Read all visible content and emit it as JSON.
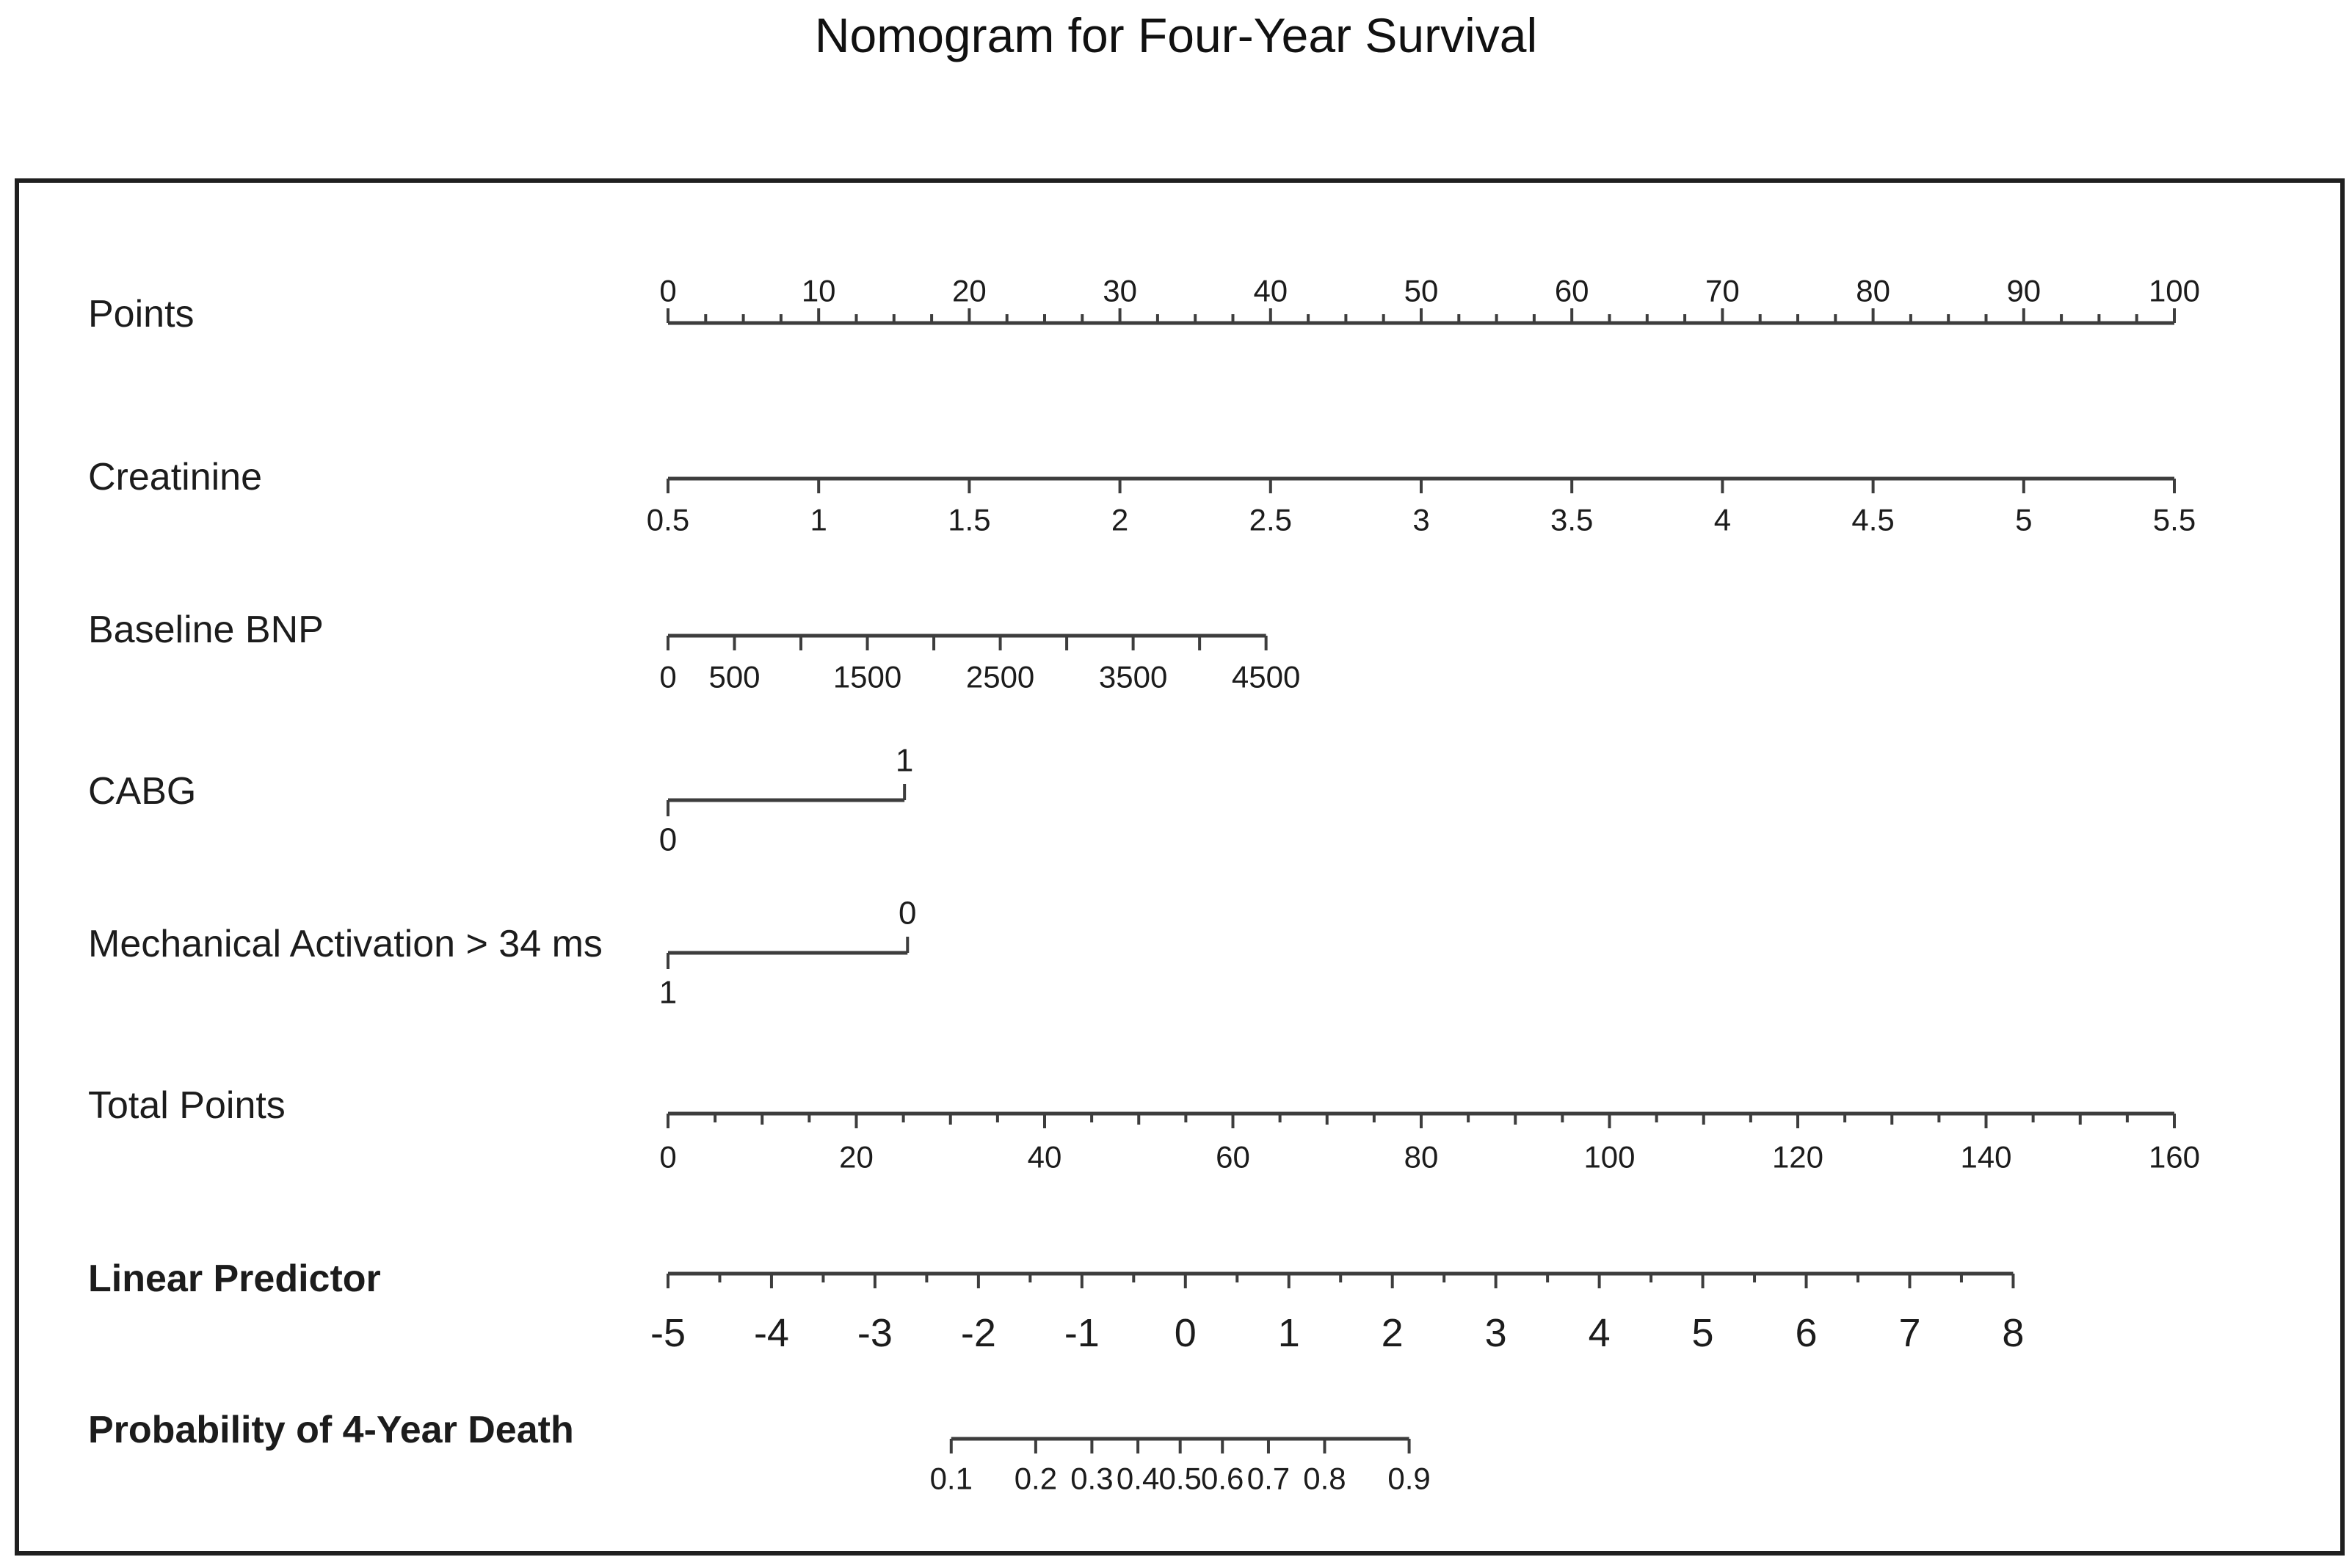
{
  "title": "Nomogram for Four-Year Survival",
  "colors": {
    "background": "#ffffff",
    "text": "#1c1c1c",
    "axis": "#3d3d3d",
    "frame": "#1f1f1f"
  },
  "chart_data": {
    "type": "nomogram",
    "title": "Nomogram for Four-Year Survival",
    "points_scale": {
      "min": 0,
      "max": 100
    },
    "axes": [
      {
        "id": "points",
        "label": "Points",
        "bold": false,
        "tick_side": "up",
        "label_side": "above",
        "transform": "linear",
        "domain": [
          0,
          100
        ],
        "line_points_range": [
          0,
          100
        ],
        "minor_step": 2.5,
        "ticks": [
          {
            "v": 0,
            "label": "0"
          },
          {
            "v": 10,
            "label": "10"
          },
          {
            "v": 20,
            "label": "20"
          },
          {
            "v": 30,
            "label": "30"
          },
          {
            "v": 40,
            "label": "40"
          },
          {
            "v": 50,
            "label": "50"
          },
          {
            "v": 60,
            "label": "60"
          },
          {
            "v": 70,
            "label": "70"
          },
          {
            "v": 80,
            "label": "80"
          },
          {
            "v": 90,
            "label": "90"
          },
          {
            "v": 100,
            "label": "100"
          }
        ]
      },
      {
        "id": "creatinine",
        "label": "Creatinine",
        "bold": false,
        "tick_side": "down",
        "label_side": "below",
        "transform": "linear",
        "domain": [
          0.5,
          5.5
        ],
        "line_points_range": [
          0,
          100
        ],
        "ticks": [
          {
            "v": 0.5,
            "label": "0.5"
          },
          {
            "v": 1,
            "label": "1"
          },
          {
            "v": 1.5,
            "label": "1.5"
          },
          {
            "v": 2,
            "label": "2"
          },
          {
            "v": 2.5,
            "label": "2.5"
          },
          {
            "v": 3,
            "label": "3"
          },
          {
            "v": 3.5,
            "label": "3.5"
          },
          {
            "v": 4,
            "label": "4"
          },
          {
            "v": 4.5,
            "label": "4.5"
          },
          {
            "v": 5,
            "label": "5"
          },
          {
            "v": 5.5,
            "label": "5.5"
          }
        ]
      },
      {
        "id": "bnp",
        "label": "Baseline BNP",
        "bold": false,
        "tick_side": "down",
        "label_side": "below",
        "transform": "linear",
        "domain": [
          0,
          4500
        ],
        "line_points_range": [
          0,
          39.7
        ],
        "ticks": [
          {
            "v": 0,
            "label": "0"
          },
          {
            "v": 500,
            "label": "500"
          },
          {
            "v": 1000
          },
          {
            "v": 1500,
            "label": "1500"
          },
          {
            "v": 2000
          },
          {
            "v": 2500,
            "label": "2500"
          },
          {
            "v": 3000
          },
          {
            "v": 3500,
            "label": "3500"
          },
          {
            "v": 4000
          },
          {
            "v": 4500,
            "label": "4500"
          }
        ]
      },
      {
        "id": "cabg",
        "label": "CABG",
        "bold": false,
        "transform": "linear",
        "domain": [
          0,
          1
        ],
        "line_points_range": [
          0,
          15.7
        ],
        "ticks": [
          {
            "v": 0,
            "label": "0",
            "side": "down"
          },
          {
            "v": 1,
            "label": "1",
            "side": "up"
          }
        ]
      },
      {
        "id": "ma",
        "label": "Mechanical Activation > 34 ms",
        "bold": false,
        "transform": "linear",
        "domain": [
          1,
          0
        ],
        "line_points_range": [
          0,
          15.9
        ],
        "ticks": [
          {
            "v": 1,
            "label": "1",
            "side": "down"
          },
          {
            "v": 0,
            "label": "0",
            "side": "up"
          }
        ]
      },
      {
        "id": "total",
        "label": "Total Points",
        "bold": false,
        "tick_side": "down",
        "label_side": "below",
        "transform": "linear",
        "domain": [
          0,
          160
        ],
        "line_points_range": [
          0,
          100
        ],
        "minor_step": 5,
        "medium_step": 10,
        "ticks": [
          {
            "v": 0,
            "label": "0"
          },
          {
            "v": 20,
            "label": "20"
          },
          {
            "v": 40,
            "label": "40"
          },
          {
            "v": 60,
            "label": "60"
          },
          {
            "v": 80,
            "label": "80"
          },
          {
            "v": 100,
            "label": "100"
          },
          {
            "v": 120,
            "label": "120"
          },
          {
            "v": 140,
            "label": "140"
          },
          {
            "v": 160,
            "label": "160"
          }
        ]
      },
      {
        "id": "lp",
        "label": "Linear Predictor",
        "bold": true,
        "tick_side": "down",
        "label_side": "below",
        "transform": "linear",
        "domain": [
          -5,
          8
        ],
        "line_points_range": [
          0,
          89.3
        ],
        "minor_step": 0.5,
        "ticks": [
          {
            "v": -5,
            "label": "-5"
          },
          {
            "v": -4,
            "label": "-4"
          },
          {
            "v": -3,
            "label": "-3"
          },
          {
            "v": -2,
            "label": "-2"
          },
          {
            "v": -1,
            "label": "-1"
          },
          {
            "v": 0,
            "label": "0"
          },
          {
            "v": 1,
            "label": "1"
          },
          {
            "v": 2,
            "label": "2"
          },
          {
            "v": 3,
            "label": "3"
          },
          {
            "v": 4,
            "label": "4"
          },
          {
            "v": 5,
            "label": "5"
          },
          {
            "v": 6,
            "label": "6"
          },
          {
            "v": 7,
            "label": "7"
          },
          {
            "v": 8,
            "label": "8"
          }
        ]
      },
      {
        "id": "prob",
        "label": "Probability of 4-Year Death",
        "bold": true,
        "tick_side": "down",
        "label_side": "below",
        "transform": "logit",
        "domain": [
          0.1,
          0.9
        ],
        "line_points_range": [
          18.8,
          49.2
        ],
        "ticks": [
          {
            "v": 0.1,
            "label": "0.1"
          },
          {
            "v": 0.2,
            "label": "0.2"
          },
          {
            "v": 0.3,
            "label": "0.3"
          },
          {
            "v": 0.4,
            "label": "0.4"
          },
          {
            "v": 0.5,
            "label": "0.5"
          },
          {
            "v": 0.6,
            "label": "0.6"
          },
          {
            "v": 0.7,
            "label": "0.7"
          },
          {
            "v": 0.8,
            "label": "0.8"
          },
          {
            "v": 0.9,
            "label": "0.9"
          }
        ]
      }
    ]
  }
}
